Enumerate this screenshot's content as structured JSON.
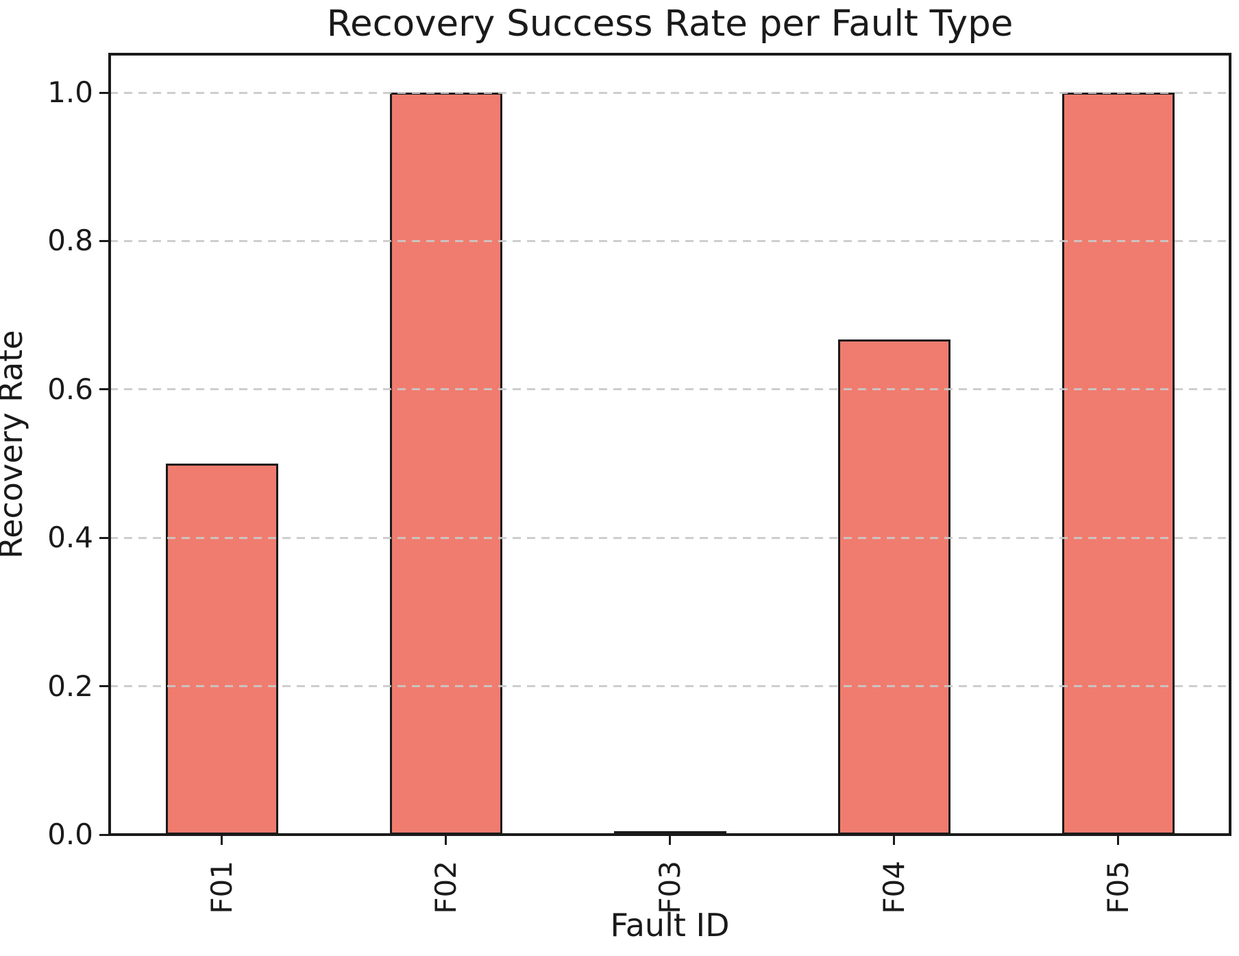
{
  "chart_data": {
    "type": "bar",
    "title": "Recovery Success Rate per Fault Type",
    "xlabel": "Fault ID",
    "ylabel": "Recovery Rate",
    "categories": [
      "F01",
      "F02",
      "F03",
      "F04",
      "F05"
    ],
    "values": [
      0.5,
      1.0,
      0.0,
      0.667,
      1.0
    ],
    "ytick_labels": [
      "0.0",
      "0.2",
      "0.4",
      "0.6",
      "0.8",
      "1.0"
    ],
    "ytick_values": [
      0.0,
      0.2,
      0.4,
      0.6,
      0.8,
      1.0
    ],
    "ylim": [
      0.0,
      1.05
    ],
    "x_tick_rotation": 90,
    "bar_width_fraction": 0.5,
    "grid": {
      "axis": "y",
      "style": "dashed",
      "over_bars": true
    },
    "legend": "none",
    "colors": {
      "bar_fill": "#f07c6f",
      "bar_edge": "#1a1a1a",
      "spine": "#1a1a1a",
      "grid": "#c9c9c9",
      "text": "#1a1a1a",
      "background": "#ffffff"
    }
  }
}
